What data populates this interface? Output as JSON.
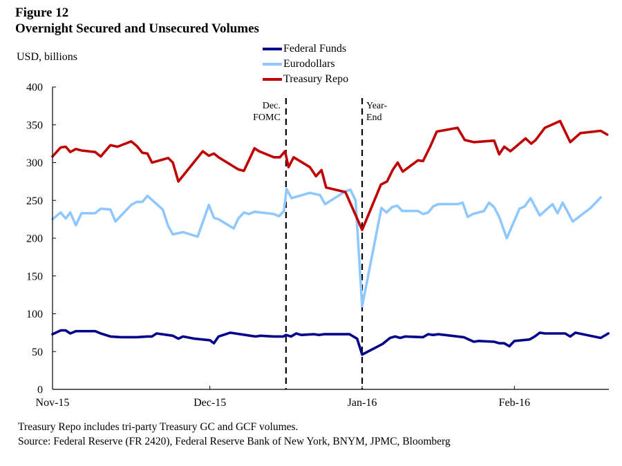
{
  "figure": {
    "number": "Figure 12",
    "title": "Overnight Secured and Unsecured Volumes",
    "units": "USD, billions",
    "note": "Treasury Repo includes tri-party Treasury GC and GCF volumes.",
    "source": "Source: Federal Reserve (FR 2420), Federal Reserve Bank of New York, BNYM, JPMC, Bloomberg"
  },
  "chart_data": {
    "type": "line",
    "title": "Overnight Secured and Unsecured Volumes",
    "xlabel": "",
    "ylabel": "USD, billions",
    "x_unit": "days since 2015-11-01",
    "xlim": [
      0,
      109.5
    ],
    "ylim": [
      0,
      400
    ],
    "yticks": [
      0,
      50,
      100,
      150,
      200,
      250,
      300,
      350,
      400
    ],
    "xticks": [
      {
        "day": 0,
        "label": "Nov-15"
      },
      {
        "day": 31,
        "label": "Dec-15"
      },
      {
        "day": 61,
        "label": "Jan-16"
      },
      {
        "day": 91,
        "label": "Feb-16"
      }
    ],
    "grid": false,
    "legend_position": "top-center",
    "annotations": [
      {
        "day": 46,
        "label_lines": [
          "Dec.",
          "FOMC"
        ],
        "side": "left",
        "style": "dashed-vertical"
      },
      {
        "day": 61,
        "label_lines": [
          "Year-",
          "End"
        ],
        "side": "right",
        "style": "dashed-vertical"
      }
    ],
    "series": [
      {
        "name": "Federal Funds",
        "color": "#00008B",
        "points": [
          [
            0,
            73
          ],
          [
            1.6,
            78
          ],
          [
            2.6,
            78
          ],
          [
            3.5,
            74
          ],
          [
            4.6,
            77
          ],
          [
            8.4,
            77
          ],
          [
            9.5,
            74
          ],
          [
            11.4,
            70
          ],
          [
            13.5,
            69
          ],
          [
            16.6,
            69
          ],
          [
            18.7,
            70
          ],
          [
            19.6,
            70
          ],
          [
            20.5,
            74
          ],
          [
            23.7,
            71
          ],
          [
            24.8,
            67
          ],
          [
            25.7,
            70
          ],
          [
            28,
            67
          ],
          [
            31,
            65
          ],
          [
            31.8,
            61
          ],
          [
            32.7,
            70
          ],
          [
            35,
            75
          ],
          [
            39,
            71
          ],
          [
            40,
            70
          ],
          [
            41,
            71
          ],
          [
            43.6,
            70
          ],
          [
            45.5,
            70
          ],
          [
            46,
            72
          ],
          [
            47,
            70
          ],
          [
            48,
            74
          ],
          [
            49,
            72
          ],
          [
            51.5,
            73
          ],
          [
            52.5,
            72
          ],
          [
            53.5,
            73
          ],
          [
            58.5,
            73
          ],
          [
            60,
            67
          ],
          [
            61,
            46
          ],
          [
            65,
            60
          ],
          [
            66.5,
            68
          ],
          [
            67.5,
            70
          ],
          [
            68.5,
            68
          ],
          [
            69.5,
            70
          ],
          [
            73,
            69
          ],
          [
            74,
            73
          ],
          [
            75,
            72
          ],
          [
            76,
            73
          ],
          [
            81,
            69
          ],
          [
            82,
            66
          ],
          [
            83,
            63
          ],
          [
            84,
            64
          ],
          [
            87,
            63
          ],
          [
            88,
            61
          ],
          [
            89,
            61
          ],
          [
            90,
            57
          ],
          [
            91,
            64
          ],
          [
            94,
            66
          ],
          [
            95,
            70
          ],
          [
            96,
            75
          ],
          [
            97,
            74
          ],
          [
            98,
            74
          ],
          [
            101,
            74
          ],
          [
            102,
            70
          ],
          [
            103,
            75
          ],
          [
            108,
            68
          ],
          [
            109.5,
            74
          ]
        ]
      },
      {
        "name": "Eurodollars",
        "color": "#8FC8FF",
        "points": [
          [
            0,
            225
          ],
          [
            1.6,
            234
          ],
          [
            2.6,
            226
          ],
          [
            3.5,
            234
          ],
          [
            4.6,
            217
          ],
          [
            5.7,
            233
          ],
          [
            8.4,
            233
          ],
          [
            9.5,
            239
          ],
          [
            11.4,
            238
          ],
          [
            12.4,
            222
          ],
          [
            15.5,
            244
          ],
          [
            16.6,
            248
          ],
          [
            17.7,
            248
          ],
          [
            18.7,
            256
          ],
          [
            21.7,
            238
          ],
          [
            22.8,
            216
          ],
          [
            23.7,
            205
          ],
          [
            25.7,
            208
          ],
          [
            28.6,
            202
          ],
          [
            30.8,
            244
          ],
          [
            31.8,
            227
          ],
          [
            32.7,
            225
          ],
          [
            35.7,
            213
          ],
          [
            36.6,
            226
          ],
          [
            37.7,
            234
          ],
          [
            38.7,
            232
          ],
          [
            39.8,
            235
          ],
          [
            43.6,
            232
          ],
          [
            44.6,
            229
          ],
          [
            45.6,
            236
          ],
          [
            46.1,
            265
          ],
          [
            47.1,
            253
          ],
          [
            50.7,
            260
          ],
          [
            52.7,
            257
          ],
          [
            53.7,
            245
          ],
          [
            57.7,
            262
          ],
          [
            58.7,
            264
          ],
          [
            59.7,
            250
          ],
          [
            61,
            110
          ],
          [
            64.8,
            240
          ],
          [
            65.8,
            234
          ],
          [
            66.9,
            241
          ],
          [
            67.9,
            243
          ],
          [
            68.9,
            236
          ],
          [
            72,
            236
          ],
          [
            73,
            232
          ],
          [
            74,
            234
          ],
          [
            75,
            242
          ],
          [
            76,
            245
          ],
          [
            79.8,
            245
          ],
          [
            80.8,
            247
          ],
          [
            81.8,
            228
          ],
          [
            82.8,
            232
          ],
          [
            85,
            236
          ],
          [
            86,
            247
          ],
          [
            87,
            241
          ],
          [
            88,
            228
          ],
          [
            89.5,
            200
          ],
          [
            92,
            239
          ],
          [
            93,
            242
          ],
          [
            94.2,
            253
          ],
          [
            96,
            230
          ],
          [
            98.5,
            245
          ],
          [
            99.5,
            233
          ],
          [
            100.5,
            247
          ],
          [
            102.5,
            222
          ],
          [
            106,
            240
          ],
          [
            108,
            254
          ]
        ]
      },
      {
        "name": "Treasury Repo",
        "color": "#C00000",
        "points": [
          [
            0,
            308
          ],
          [
            1.6,
            320
          ],
          [
            2.6,
            321
          ],
          [
            3.5,
            314
          ],
          [
            4.6,
            318
          ],
          [
            5.7,
            316
          ],
          [
            8.4,
            314
          ],
          [
            9.5,
            308
          ],
          [
            11.4,
            323
          ],
          [
            12.8,
            321
          ],
          [
            15.5,
            328
          ],
          [
            16.6,
            322
          ],
          [
            17.7,
            313
          ],
          [
            18.7,
            312
          ],
          [
            19.6,
            300
          ],
          [
            22.8,
            306
          ],
          [
            23.7,
            300
          ],
          [
            24.8,
            275
          ],
          [
            29.6,
            315
          ],
          [
            30.8,
            309
          ],
          [
            31.8,
            312
          ],
          [
            32.7,
            307
          ],
          [
            36.6,
            291
          ],
          [
            37.7,
            289
          ],
          [
            39.8,
            319
          ],
          [
            40.7,
            315
          ],
          [
            43.6,
            307
          ],
          [
            44.8,
            307
          ],
          [
            45.8,
            315
          ],
          [
            46.5,
            294
          ],
          [
            47.5,
            307
          ],
          [
            50.7,
            294
          ],
          [
            51.9,
            282
          ],
          [
            53,
            290
          ],
          [
            53.9,
            267
          ],
          [
            57.7,
            261
          ],
          [
            61,
            211
          ],
          [
            64.7,
            271
          ],
          [
            65.9,
            275
          ],
          [
            67,
            290
          ],
          [
            68,
            300
          ],
          [
            69,
            288
          ],
          [
            72,
            303
          ],
          [
            73,
            302
          ],
          [
            74.4,
            321
          ],
          [
            75.7,
            341
          ],
          [
            79.8,
            346
          ],
          [
            81.2,
            330
          ],
          [
            83,
            327
          ],
          [
            87,
            329
          ],
          [
            88,
            311
          ],
          [
            89,
            321
          ],
          [
            90.2,
            315
          ],
          [
            93.2,
            332
          ],
          [
            94.3,
            325
          ],
          [
            95.2,
            330
          ],
          [
            97,
            346
          ],
          [
            100,
            355
          ],
          [
            102,
            327
          ],
          [
            104,
            339
          ],
          [
            108,
            342
          ],
          [
            109.3,
            337
          ]
        ]
      }
    ]
  }
}
